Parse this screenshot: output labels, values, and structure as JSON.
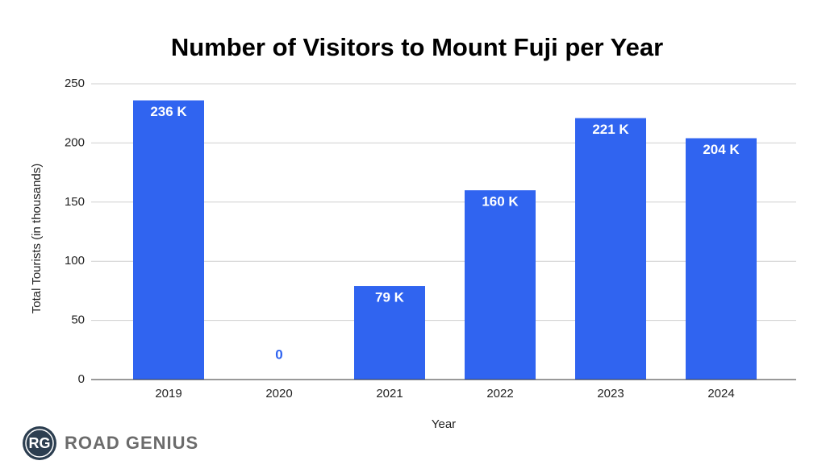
{
  "chart_data": {
    "type": "bar",
    "title": "Number of Visitors to Mount Fuji per Year",
    "x_label": "Year",
    "y_label": "Total Tourists (in thousands)",
    "categories": [
      "2019",
      "2020",
      "2021",
      "2022",
      "2023",
      "2024"
    ],
    "values": [
      236,
      0,
      79,
      160,
      221,
      204
    ],
    "value_labels": [
      "236 K",
      "0",
      "79 K",
      "160 K",
      "221 K",
      "204 K"
    ],
    "color": "#3064f0",
    "ylim": [
      0,
      250
    ],
    "yticks": [
      0,
      50,
      100,
      150,
      200,
      250
    ],
    "grid": true
  },
  "logo": {
    "badge": "RG",
    "text": "ROAD GENIUS"
  }
}
